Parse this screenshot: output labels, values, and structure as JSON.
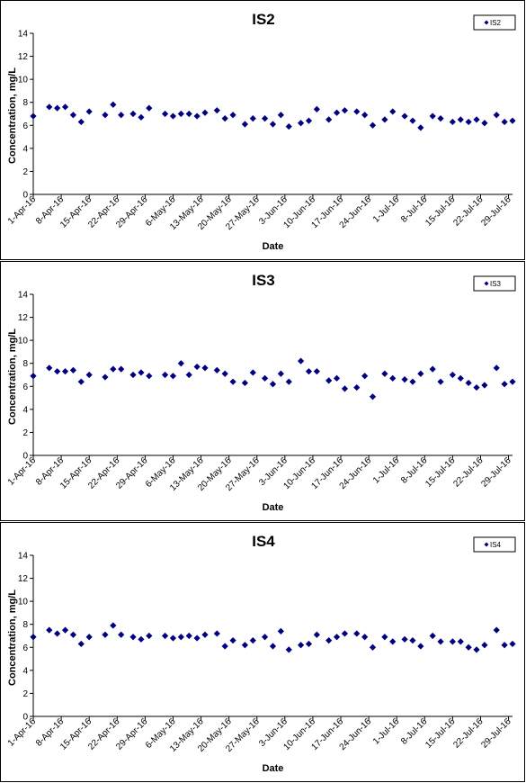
{
  "chart_data": [
    {
      "type": "scatter",
      "title": "IS2",
      "xlabel": "Date",
      "ylabel": "Concentration, mg/L",
      "ylim": [
        0,
        14
      ],
      "yticks": [
        "0",
        "2",
        "4",
        "6",
        "8",
        "10",
        "12",
        "14"
      ],
      "xlim": [
        "2016-04-01",
        "2016-07-30"
      ],
      "xtick_labels": [
        "1-Apr-16",
        "8-Apr-16",
        "15-Apr-16",
        "22-Apr-16",
        "29-Apr-16",
        "6-May-16",
        "13-May-16",
        "20-May-16",
        "27-May-16",
        "3-Jun-16",
        "10-Jun-16",
        "17-Jun-16",
        "24-Jun-16",
        "1-Jul-16",
        "8-Jul-16",
        "15-Jul-16",
        "22-Jul-16",
        "29-Jul-16"
      ],
      "grid": false,
      "legend_position": "top-right",
      "marker_color": "#000080",
      "series": [
        {
          "name": "IS2",
          "x": [
            "2016-04-01",
            "2016-04-05",
            "2016-04-07",
            "2016-04-09",
            "2016-04-11",
            "2016-04-13",
            "2016-04-15",
            "2016-04-19",
            "2016-04-21",
            "2016-04-23",
            "2016-04-26",
            "2016-04-28",
            "2016-04-30",
            "2016-05-04",
            "2016-05-06",
            "2016-05-08",
            "2016-05-10",
            "2016-05-12",
            "2016-05-14",
            "2016-05-17",
            "2016-05-19",
            "2016-05-21",
            "2016-05-24",
            "2016-05-26",
            "2016-05-29",
            "2016-05-31",
            "2016-06-02",
            "2016-06-04",
            "2016-06-07",
            "2016-06-09",
            "2016-06-11",
            "2016-06-14",
            "2016-06-16",
            "2016-06-18",
            "2016-06-21",
            "2016-06-23",
            "2016-06-25",
            "2016-06-28",
            "2016-06-30",
            "2016-07-03",
            "2016-07-05",
            "2016-07-07",
            "2016-07-10",
            "2016-07-12",
            "2016-07-15",
            "2016-07-17",
            "2016-07-19",
            "2016-07-21",
            "2016-07-23",
            "2016-07-26",
            "2016-07-28",
            "2016-07-30"
          ],
          "y": [
            6.8,
            7.6,
            7.5,
            7.6,
            6.9,
            6.3,
            7.2,
            6.9,
            7.8,
            6.9,
            7.0,
            6.7,
            7.5,
            7.0,
            6.8,
            7.0,
            7.0,
            6.8,
            7.1,
            7.3,
            6.6,
            6.9,
            6.1,
            6.6,
            6.6,
            6.1,
            6.9,
            5.9,
            6.2,
            6.4,
            7.4,
            6.5,
            7.1,
            7.3,
            7.2,
            6.9,
            6.0,
            6.5,
            7.2,
            6.8,
            6.4,
            5.8,
            6.8,
            6.6,
            6.3,
            6.5,
            6.3,
            6.5,
            6.2,
            6.9,
            6.3,
            6.4
          ]
        }
      ]
    },
    {
      "type": "scatter",
      "title": "IS3",
      "xlabel": "Date",
      "ylabel": "Concentration, mg/L",
      "ylim": [
        0,
        14
      ],
      "yticks": [
        "0",
        "2",
        "4",
        "6",
        "8",
        "10",
        "12",
        "14"
      ],
      "xlim": [
        "2016-04-01",
        "2016-07-30"
      ],
      "xtick_labels": [
        "1-Apr-16",
        "8-Apr-16",
        "15-Apr-16",
        "22-Apr-16",
        "29-Apr-16",
        "6-May-16",
        "13-May-16",
        "20-May-16",
        "27-May-16",
        "3-Jun-16",
        "10-Jun-16",
        "17-Jun-16",
        "24-Jun-16",
        "1-Jul-16",
        "8-Jul-16",
        "15-Jul-16",
        "22-Jul-16",
        "29-Jul-16"
      ],
      "grid": false,
      "legend_position": "top-right",
      "marker_color": "#000080",
      "series": [
        {
          "name": "IS3",
          "x": [
            "2016-04-01",
            "2016-04-05",
            "2016-04-07",
            "2016-04-09",
            "2016-04-11",
            "2016-04-13",
            "2016-04-15",
            "2016-04-19",
            "2016-04-21",
            "2016-04-23",
            "2016-04-26",
            "2016-04-28",
            "2016-04-30",
            "2016-05-04",
            "2016-05-06",
            "2016-05-08",
            "2016-05-10",
            "2016-05-12",
            "2016-05-14",
            "2016-05-17",
            "2016-05-19",
            "2016-05-21",
            "2016-05-24",
            "2016-05-26",
            "2016-05-29",
            "2016-05-31",
            "2016-06-02",
            "2016-06-04",
            "2016-06-07",
            "2016-06-09",
            "2016-06-11",
            "2016-06-14",
            "2016-06-16",
            "2016-06-18",
            "2016-06-21",
            "2016-06-23",
            "2016-06-25",
            "2016-06-28",
            "2016-06-30",
            "2016-07-03",
            "2016-07-05",
            "2016-07-07",
            "2016-07-10",
            "2016-07-12",
            "2016-07-15",
            "2016-07-17",
            "2016-07-19",
            "2016-07-21",
            "2016-07-23",
            "2016-07-26",
            "2016-07-28",
            "2016-07-30"
          ],
          "y": [
            6.9,
            7.6,
            7.3,
            7.3,
            7.4,
            6.4,
            7.0,
            6.8,
            7.5,
            7.5,
            7.0,
            7.2,
            6.9,
            7.0,
            6.9,
            8.0,
            7.0,
            7.7,
            7.6,
            7.4,
            7.1,
            6.4,
            6.3,
            7.2,
            6.7,
            6.2,
            7.1,
            6.4,
            8.2,
            7.3,
            7.3,
            6.5,
            6.7,
            5.8,
            5.9,
            6.9,
            5.1,
            7.1,
            6.7,
            6.6,
            6.4,
            7.1,
            7.5,
            6.4,
            7.0,
            6.7,
            6.3,
            5.9,
            6.1,
            7.6,
            6.2,
            6.4
          ]
        }
      ]
    },
    {
      "type": "scatter",
      "title": "IS4",
      "xlabel": "Date",
      "ylabel": "Concentration, mg/L",
      "ylim": [
        0,
        14
      ],
      "yticks": [
        "0",
        "2",
        "4",
        "6",
        "8",
        "10",
        "12",
        "14"
      ],
      "xlim": [
        "2016-04-01",
        "2016-07-30"
      ],
      "xtick_labels": [
        "1-Apr-16",
        "8-Apr-16",
        "15-Apr-16",
        "22-Apr-16",
        "29-Apr-16",
        "6-May-16",
        "13-May-16",
        "20-May-16",
        "27-May-16",
        "3-Jun-16",
        "10-Jun-16",
        "17-Jun-16",
        "24-Jun-16",
        "1-Jul-16",
        "8-Jul-16",
        "15-Jul-16",
        "22-Jul-16",
        "29-Jul-16"
      ],
      "grid": false,
      "legend_position": "top-right",
      "marker_color": "#000080",
      "series": [
        {
          "name": "IS4",
          "x": [
            "2016-04-01",
            "2016-04-05",
            "2016-04-07",
            "2016-04-09",
            "2016-04-11",
            "2016-04-13",
            "2016-04-15",
            "2016-04-19",
            "2016-04-21",
            "2016-04-23",
            "2016-04-26",
            "2016-04-28",
            "2016-04-30",
            "2016-05-04",
            "2016-05-06",
            "2016-05-08",
            "2016-05-10",
            "2016-05-12",
            "2016-05-14",
            "2016-05-17",
            "2016-05-19",
            "2016-05-21",
            "2016-05-24",
            "2016-05-26",
            "2016-05-29",
            "2016-05-31",
            "2016-06-02",
            "2016-06-04",
            "2016-06-07",
            "2016-06-09",
            "2016-06-11",
            "2016-06-14",
            "2016-06-16",
            "2016-06-18",
            "2016-06-21",
            "2016-06-23",
            "2016-06-25",
            "2016-06-28",
            "2016-06-30",
            "2016-07-03",
            "2016-07-05",
            "2016-07-07",
            "2016-07-10",
            "2016-07-12",
            "2016-07-15",
            "2016-07-17",
            "2016-07-19",
            "2016-07-21",
            "2016-07-23",
            "2016-07-26",
            "2016-07-28",
            "2016-07-30"
          ],
          "y": [
            6.9,
            7.5,
            7.2,
            7.5,
            7.1,
            6.3,
            6.9,
            7.1,
            7.9,
            7.1,
            6.9,
            6.7,
            7.0,
            7.0,
            6.8,
            6.9,
            7.0,
            6.8,
            7.1,
            7.2,
            6.1,
            6.6,
            6.2,
            6.6,
            6.9,
            6.1,
            7.4,
            5.8,
            6.2,
            6.3,
            7.1,
            6.6,
            6.9,
            7.2,
            7.2,
            6.9,
            6.0,
            6.9,
            6.5,
            6.7,
            6.6,
            6.1,
            7.0,
            6.5,
            6.5,
            6.5,
            6.0,
            5.8,
            6.2,
            7.5,
            6.2,
            6.3
          ]
        }
      ]
    }
  ]
}
